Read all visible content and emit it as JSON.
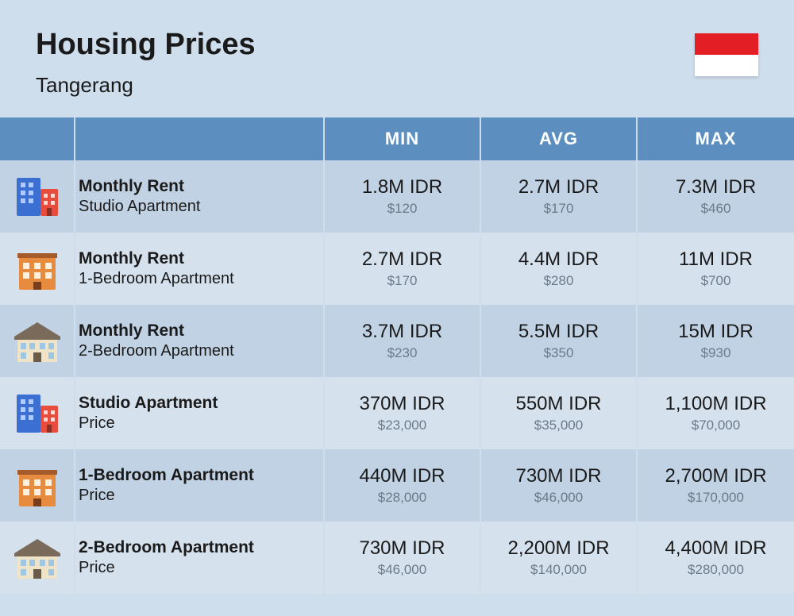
{
  "header": {
    "title": "Housing Prices",
    "subtitle": "Tangerang",
    "flag_colors": {
      "top": "#e31e24",
      "bottom": "#ffffff"
    }
  },
  "columns": {
    "c1": "",
    "c2": "",
    "min": "MIN",
    "avg": "AVG",
    "max": "MAX"
  },
  "rows": [
    {
      "icon": "studio",
      "label_main": "Monthly Rent",
      "label_sub": "Studio Apartment",
      "min_main": "1.8M IDR",
      "min_sub": "$120",
      "avg_main": "2.7M IDR",
      "avg_sub": "$170",
      "max_main": "7.3M IDR",
      "max_sub": "$460"
    },
    {
      "icon": "onebed",
      "label_main": "Monthly Rent",
      "label_sub": "1-Bedroom Apartment",
      "min_main": "2.7M IDR",
      "min_sub": "$170",
      "avg_main": "4.4M IDR",
      "avg_sub": "$280",
      "max_main": "11M IDR",
      "max_sub": "$700"
    },
    {
      "icon": "twobed",
      "label_main": "Monthly Rent",
      "label_sub": "2-Bedroom Apartment",
      "min_main": "3.7M IDR",
      "min_sub": "$230",
      "avg_main": "5.5M IDR",
      "avg_sub": "$350",
      "max_main": "15M IDR",
      "max_sub": "$930"
    },
    {
      "icon": "studio",
      "label_main": "Studio Apartment",
      "label_sub": "Price",
      "min_main": "370M IDR",
      "min_sub": "$23,000",
      "avg_main": "550M IDR",
      "avg_sub": "$35,000",
      "max_main": "1,100M IDR",
      "max_sub": "$70,000"
    },
    {
      "icon": "onebed",
      "label_main": "1-Bedroom Apartment",
      "label_sub": "Price",
      "min_main": "440M IDR",
      "min_sub": "$28,000",
      "avg_main": "730M IDR",
      "avg_sub": "$46,000",
      "max_main": "2,700M IDR",
      "max_sub": "$170,000"
    },
    {
      "icon": "twobed",
      "label_main": "2-Bedroom Apartment",
      "label_sub": "Price",
      "min_main": "730M IDR",
      "min_sub": "$46,000",
      "avg_main": "2,200M IDR",
      "avg_sub": "$140,000",
      "max_main": "4,400M IDR",
      "max_sub": "$280,000"
    }
  ],
  "style": {
    "page_bg": "#cfdeed",
    "header_bg": "#5c8ebf",
    "row_even_bg": "#c0d2e4",
    "row_odd_bg": "#d5e1ed",
    "text_color": "#1a1a1a",
    "subtext_color": "#6b7a8a",
    "icon_colors": {
      "studio_blue": "#3b6fd1",
      "studio_red": "#e74c3c",
      "onebed_orange": "#e78b3f",
      "onebed_brown": "#a55a2a",
      "twobed_wall": "#f0e4c8",
      "twobed_roof": "#7a6a5a"
    }
  }
}
